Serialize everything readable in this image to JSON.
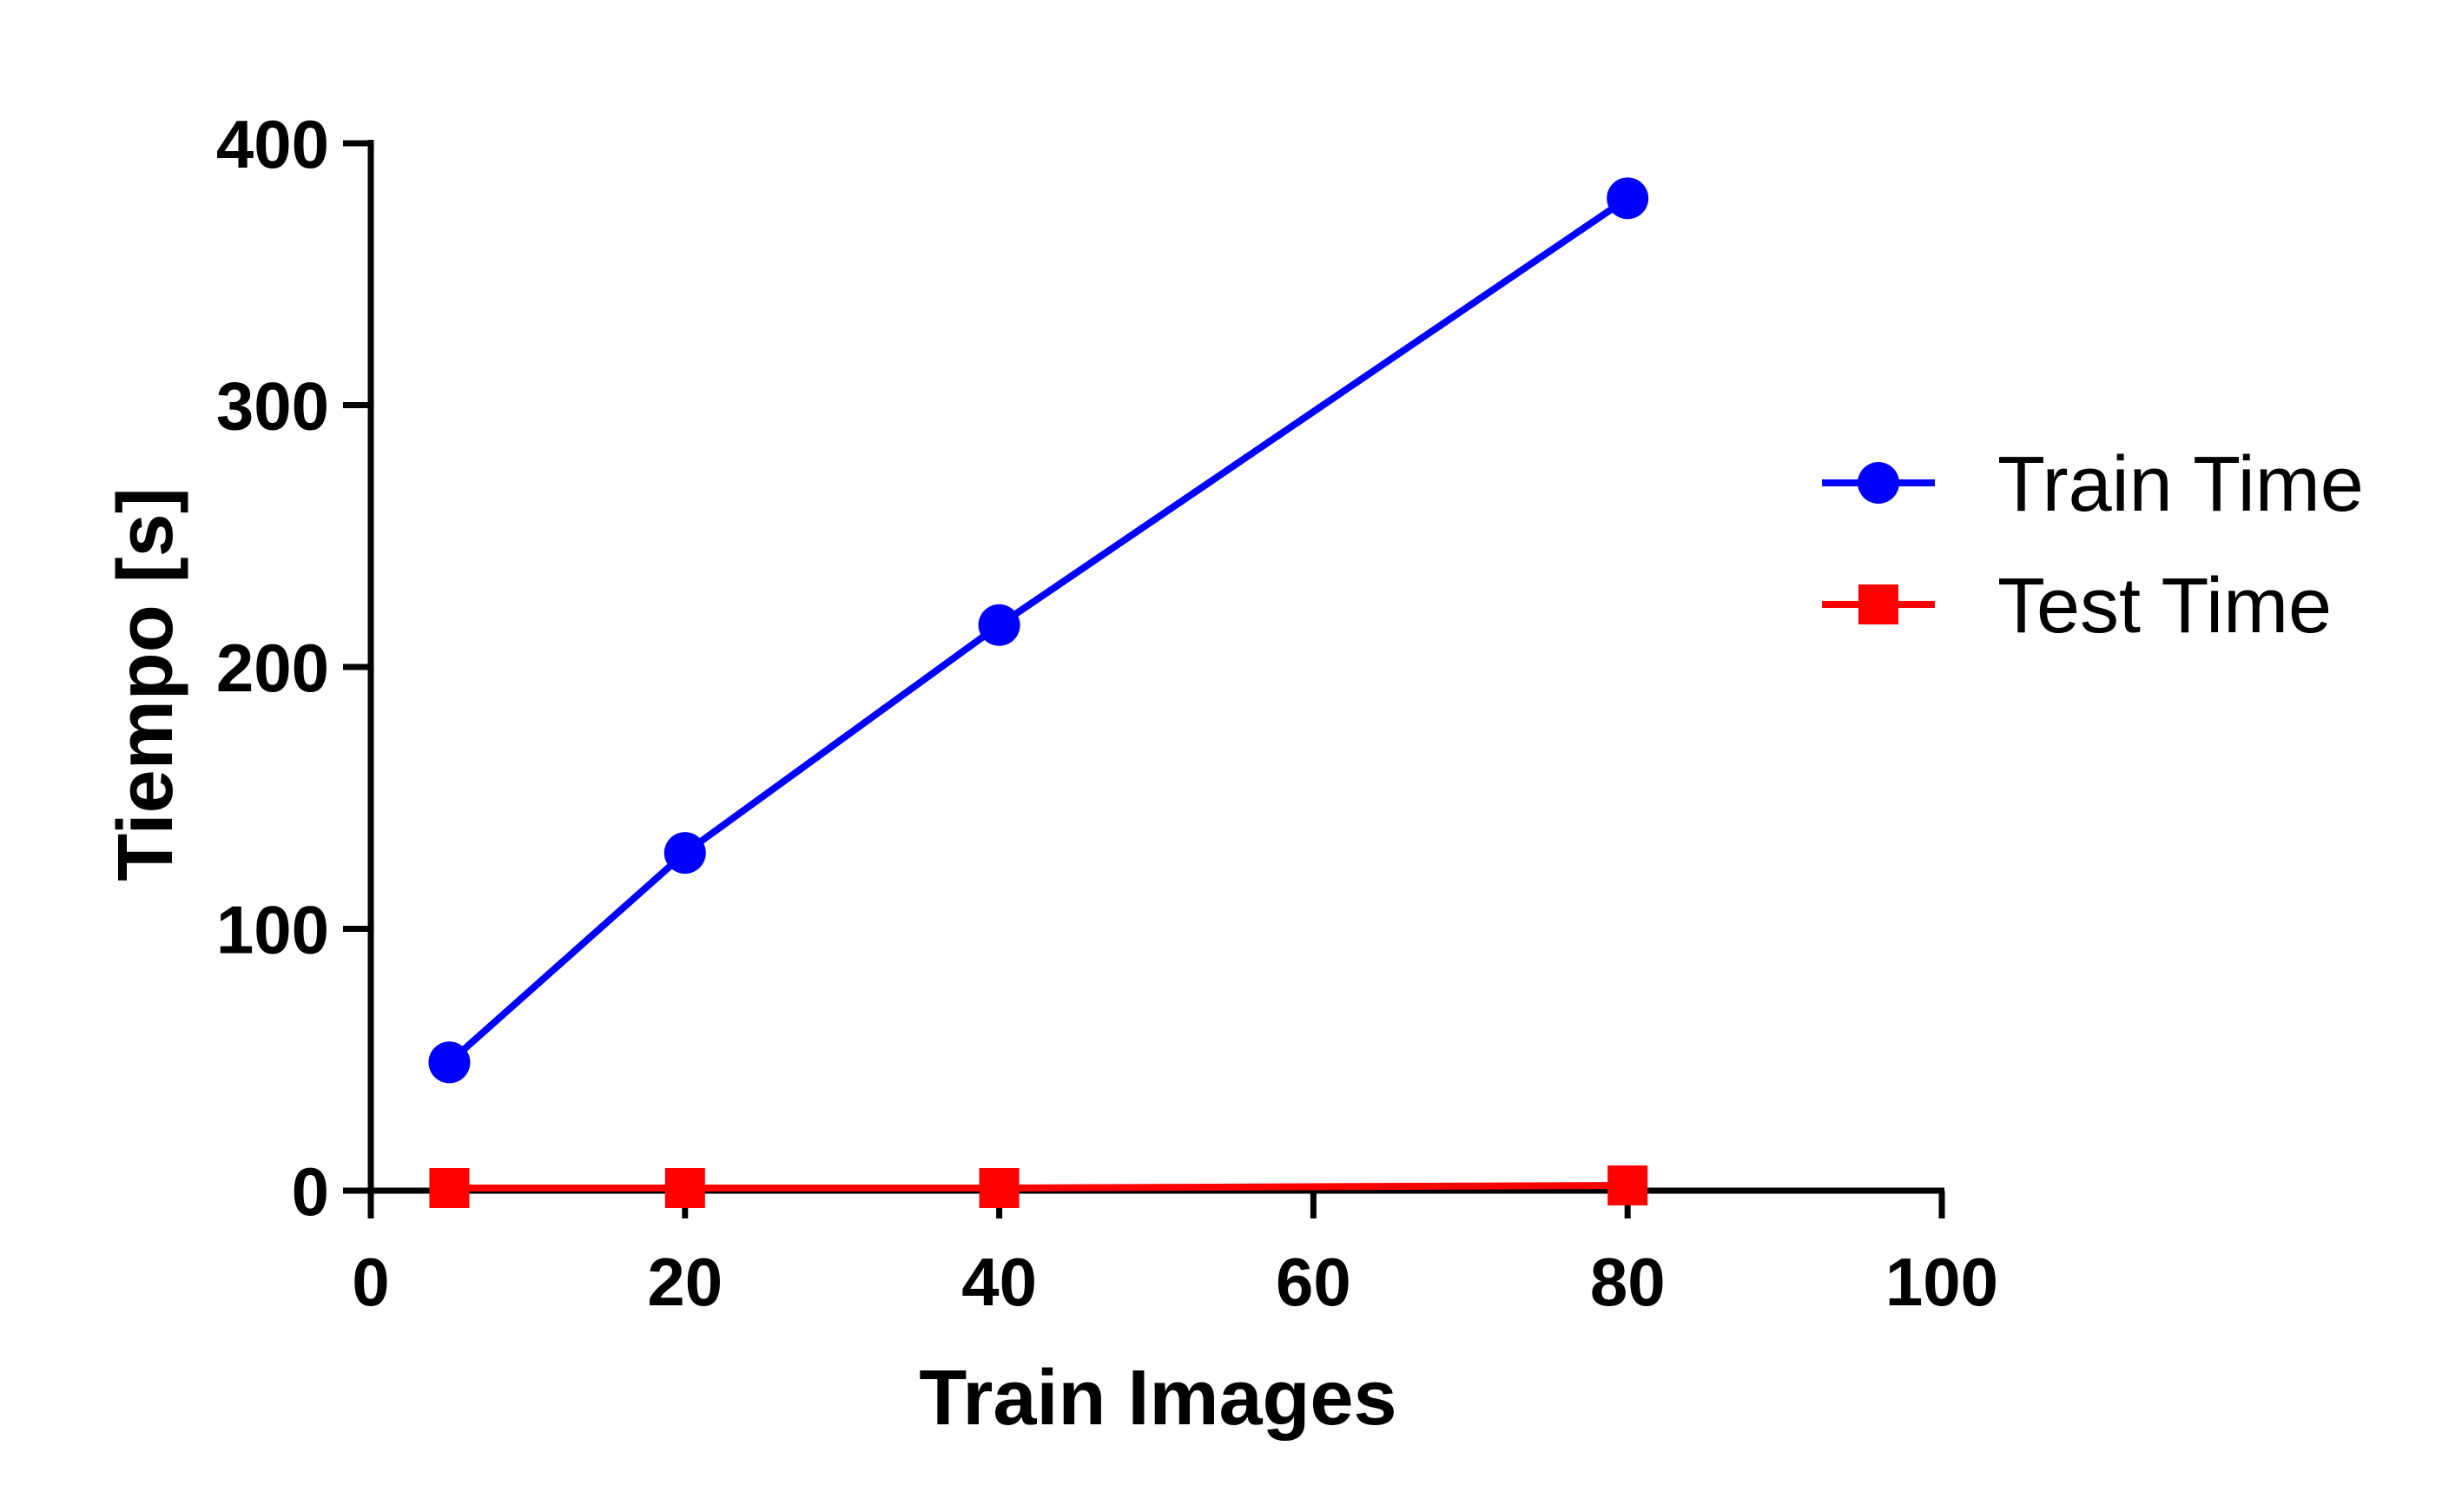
{
  "chart_data": {
    "type": "line",
    "title": "",
    "xlabel": "Train Images",
    "ylabel": "Tiempo [s]",
    "xlim": [
      0,
      100
    ],
    "ylim": [
      0,
      400
    ],
    "xticks": [
      0,
      20,
      40,
      60,
      80,
      100
    ],
    "yticks": [
      0,
      100,
      200,
      300,
      400
    ],
    "xtick_labels": [
      "0",
      "20",
      "40",
      "60",
      "80",
      "100"
    ],
    "ytick_labels": [
      "0",
      "100",
      "200",
      "300",
      "400"
    ],
    "grid": false,
    "legend_position": "right",
    "series": [
      {
        "name": "Train Time",
        "color": "#0000ff",
        "marker": "circle",
        "points": [
          {
            "x": 5,
            "y": 49
          },
          {
            "x": 20,
            "y": 129
          },
          {
            "x": 40,
            "y": 216
          },
          {
            "x": 80,
            "y": 379
          }
        ]
      },
      {
        "name": "Test Time",
        "color": "#ff0000",
        "marker": "square",
        "points": [
          {
            "x": 5,
            "y": 1
          },
          {
            "x": 20,
            "y": 1
          },
          {
            "x": 40,
            "y": 1
          },
          {
            "x": 80,
            "y": 2
          }
        ]
      }
    ]
  }
}
